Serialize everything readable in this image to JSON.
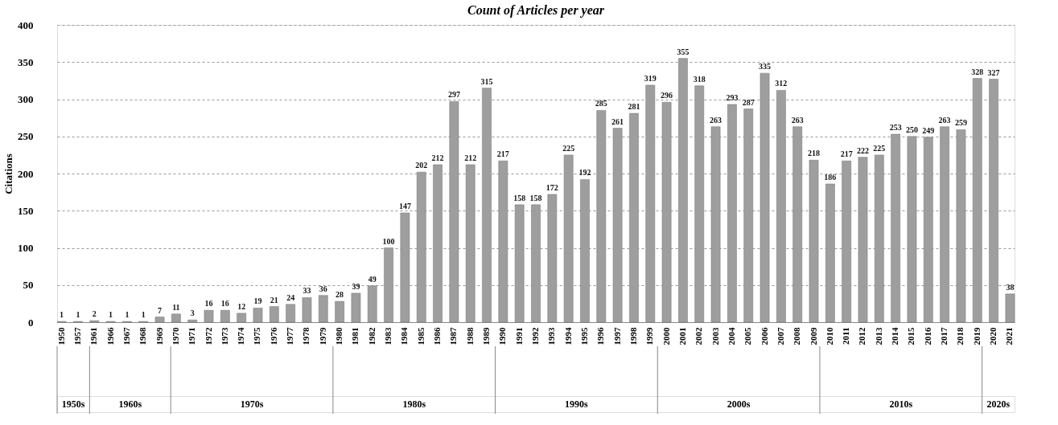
{
  "chart_data": {
    "type": "bar",
    "title": "Count of Articles per year",
    "ylabel": "Citations",
    "categories": [
      "1950",
      "1957",
      "1961",
      "1966",
      "1967",
      "1968",
      "1969",
      "1970",
      "1971",
      "1972",
      "1973",
      "1974",
      "1975",
      "1976",
      "1977",
      "1978",
      "1979",
      "1980",
      "1981",
      "1982",
      "1983",
      "1984",
      "1985",
      "1986",
      "1987",
      "1988",
      "1989",
      "1990",
      "1991",
      "1992",
      "1993",
      "1994",
      "1995",
      "1996",
      "1997",
      "1998",
      "1999",
      "2000",
      "2001",
      "2002",
      "2003",
      "2004",
      "2005",
      "2006",
      "2007",
      "2008",
      "2009",
      "2010",
      "2011",
      "2012",
      "2013",
      "2014",
      "2015",
      "2016",
      "2017",
      "2018",
      "2019",
      "2020",
      "2021"
    ],
    "values": [
      1,
      1,
      2,
      1,
      1,
      1,
      7,
      11,
      3,
      16,
      16,
      12,
      19,
      21,
      24,
      33,
      36,
      28,
      39,
      49,
      100,
      147,
      202,
      212,
      297,
      212,
      315,
      217,
      158,
      158,
      172,
      225,
      192,
      285,
      261,
      281,
      319,
      296,
      355,
      318,
      263,
      293,
      287,
      335,
      312,
      263,
      218,
      186,
      217,
      222,
      225,
      253,
      250,
      249,
      263,
      259,
      328,
      327,
      38
    ],
    "color": "#9e9e9e",
    "ylim": [
      0,
      400
    ],
    "yticks": [
      0,
      50,
      100,
      150,
      200,
      250,
      300,
      350,
      400
    ],
    "grid": "y",
    "data_labels": true,
    "annotations": [
      "1950s",
      "1960s",
      "1970s",
      "1980s",
      "1990s",
      "2000s",
      "2010s",
      "2020s"
    ]
  }
}
